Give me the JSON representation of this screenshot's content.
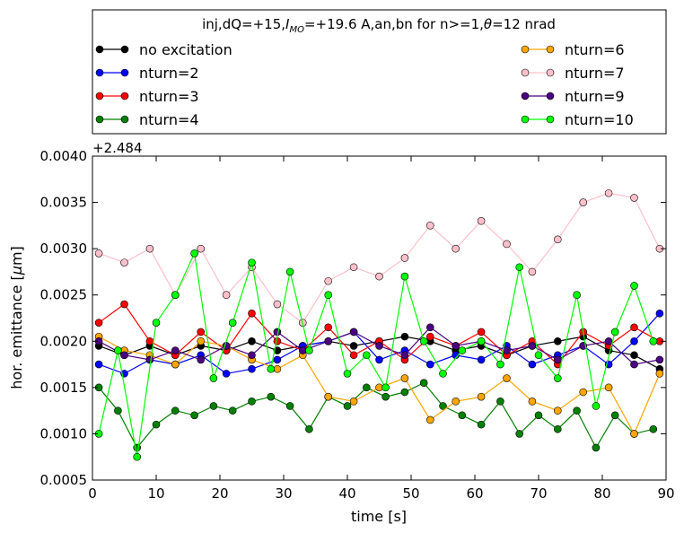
{
  "chart_data": {
    "type": "line",
    "title": "inj,dQ=+15,I_MO=+19.6 A,an,bn for n>=1,θ=12 nrad",
    "title_parts": {
      "prefix": "inj,dQ=+15,",
      "italic_symbol": "I",
      "subscript": "MO",
      "mid": "=+19.6 A,an,bn for n>=1,",
      "theta": "θ",
      "suffix": "=12 nrad"
    },
    "xlabel": "time [s]",
    "ylabel": "hor. emittance [μm]",
    "ylabel_parts": {
      "prefix": "hor. emittance [",
      "mu": "μ",
      "suffix": "m]"
    },
    "y_offset_label": "+2.484",
    "y_offset": 2.484,
    "xlim": [
      0,
      90
    ],
    "ylim": [
      0.0005,
      0.004
    ],
    "xticks": [
      0,
      10,
      20,
      30,
      40,
      50,
      60,
      70,
      80,
      90
    ],
    "xtick_labels": [
      "0",
      "10",
      "20",
      "30",
      "40",
      "50",
      "60",
      "70",
      "80",
      "90"
    ],
    "yticks": [
      0.0005,
      0.001,
      0.0015,
      0.002,
      0.0025,
      0.003,
      0.0035,
      0.004
    ],
    "ytick_labels": [
      "0.0005",
      "0.0010",
      "0.0015",
      "0.0020",
      "0.0025",
      "0.0030",
      "0.0035",
      "0.0040"
    ],
    "legend_position": "above plot, two columns",
    "series": [
      {
        "name": "no excitation",
        "color": "#000000",
        "line_color": "#000000",
        "x": [
          1,
          5,
          9,
          13,
          17,
          21,
          25,
          29,
          33,
          37,
          41,
          45,
          49,
          53,
          57,
          61,
          65,
          69,
          73,
          77,
          81,
          85,
          89
        ],
        "values": [
          0.00195,
          0.00185,
          0.00195,
          0.00185,
          0.00195,
          0.0019,
          0.002,
          0.0019,
          0.00195,
          0.002,
          0.00195,
          0.002,
          0.00205,
          0.002,
          0.0019,
          0.00195,
          0.00185,
          0.00195,
          0.002,
          0.00205,
          0.0019,
          0.00185,
          0.0017
        ]
      },
      {
        "name": "nturn=2",
        "color": "#0000ff",
        "line_color": "#0000ff",
        "x": [
          1,
          5,
          9,
          13,
          17,
          21,
          25,
          29,
          33,
          37,
          41,
          45,
          49,
          53,
          57,
          61,
          65,
          69,
          73,
          77,
          81,
          85,
          89
        ],
        "values": [
          0.00175,
          0.00165,
          0.0018,
          0.00175,
          0.00185,
          0.00165,
          0.0017,
          0.0018,
          0.00195,
          0.002,
          0.0021,
          0.0018,
          0.0019,
          0.00175,
          0.00185,
          0.0018,
          0.00195,
          0.00175,
          0.00185,
          0.00195,
          0.00175,
          0.002,
          0.0023
        ]
      },
      {
        "name": "nturn=3",
        "color": "#ff0000",
        "line_color": "#ff0000",
        "x": [
          1,
          5,
          9,
          13,
          17,
          21,
          25,
          29,
          33,
          37,
          41,
          45,
          49,
          53,
          57,
          61,
          65,
          69,
          73,
          77,
          81,
          85,
          89
        ],
        "values": [
          0.0022,
          0.0024,
          0.002,
          0.00185,
          0.0021,
          0.0019,
          0.0023,
          0.002,
          0.0019,
          0.00215,
          0.00185,
          0.002,
          0.0018,
          0.00205,
          0.00195,
          0.0021,
          0.00185,
          0.002,
          0.00175,
          0.0021,
          0.00195,
          0.00215,
          0.002
        ]
      },
      {
        "name": "nturn=4",
        "color": "#008000",
        "line_color": "#008000",
        "x": [
          1,
          4,
          7,
          10,
          13,
          16,
          19,
          22,
          25,
          28,
          31,
          34,
          37,
          40,
          43,
          46,
          49,
          52,
          55,
          58,
          61,
          64,
          67,
          70,
          73,
          76,
          79,
          82,
          85,
          88
        ],
        "values": [
          0.0015,
          0.00125,
          0.00085,
          0.0011,
          0.00125,
          0.0012,
          0.0013,
          0.00125,
          0.00135,
          0.0014,
          0.0013,
          0.00105,
          0.0014,
          0.0013,
          0.0015,
          0.0014,
          0.00145,
          0.00155,
          0.0013,
          0.0012,
          0.0011,
          0.00135,
          0.001,
          0.0012,
          0.00105,
          0.00125,
          0.00085,
          0.0012,
          0.001,
          0.00105
        ]
      },
      {
        "name": "nturn=6",
        "color": "#ffa500",
        "line_color": "#ffa500",
        "x": [
          1,
          5,
          9,
          13,
          17,
          21,
          25,
          29,
          33,
          37,
          41,
          45,
          49,
          53,
          57,
          61,
          65,
          69,
          73,
          77,
          81,
          85,
          89
        ],
        "values": [
          0.00205,
          0.0019,
          0.00185,
          0.00175,
          0.002,
          0.00195,
          0.0018,
          0.0017,
          0.00185,
          0.0014,
          0.00135,
          0.0015,
          0.0016,
          0.00115,
          0.00135,
          0.0014,
          0.0016,
          0.00135,
          0.00125,
          0.00145,
          0.0015,
          0.001,
          0.00165
        ]
      },
      {
        "name": "nturn=7",
        "color": "#ffc0cb",
        "line_color": "#ffc0cb",
        "x": [
          1,
          5,
          9,
          13,
          17,
          21,
          25,
          29,
          33,
          37,
          41,
          45,
          49,
          53,
          57,
          61,
          65,
          69,
          73,
          77,
          81,
          85,
          89
        ],
        "values": [
          0.00295,
          0.00285,
          0.003,
          0.0025,
          0.003,
          0.0025,
          0.0028,
          0.0024,
          0.0022,
          0.00265,
          0.0028,
          0.0027,
          0.0029,
          0.00325,
          0.003,
          0.0033,
          0.00305,
          0.00275,
          0.0031,
          0.0035,
          0.0036,
          0.00355,
          0.003
        ]
      },
      {
        "name": "nturn=9",
        "color": "#4b0082",
        "line_color": "#4b0082",
        "x": [
          1,
          5,
          9,
          13,
          17,
          21,
          25,
          29,
          33,
          37,
          41,
          45,
          49,
          53,
          57,
          61,
          65,
          69,
          73,
          77,
          81,
          85,
          89
        ],
        "values": [
          0.002,
          0.00185,
          0.0018,
          0.0019,
          0.0018,
          0.00195,
          0.00185,
          0.0021,
          0.0019,
          0.002,
          0.0021,
          0.00195,
          0.00185,
          0.00215,
          0.00195,
          0.002,
          0.0019,
          0.00195,
          0.0018,
          0.00195,
          0.002,
          0.00175,
          0.0018
        ]
      },
      {
        "name": "nturn=10",
        "color": "#00ff00",
        "line_color": "#00ff00",
        "x": [
          1,
          4,
          7,
          10,
          13,
          16,
          19,
          22,
          25,
          28,
          31,
          34,
          37,
          40,
          43,
          46,
          49,
          52,
          55,
          58,
          61,
          64,
          67,
          70,
          73,
          76,
          79,
          82,
          85,
          88
        ],
        "values": [
          0.001,
          0.0019,
          0.00075,
          0.0022,
          0.0025,
          0.00295,
          0.0016,
          0.0022,
          0.00285,
          0.0017,
          0.00275,
          0.0019,
          0.0025,
          0.00165,
          0.00185,
          0.0015,
          0.0027,
          0.002,
          0.00165,
          0.0019,
          0.002,
          0.00175,
          0.0028,
          0.00185,
          0.0016,
          0.0025,
          0.0013,
          0.0021,
          0.0026,
          0.002
        ]
      }
    ]
  }
}
